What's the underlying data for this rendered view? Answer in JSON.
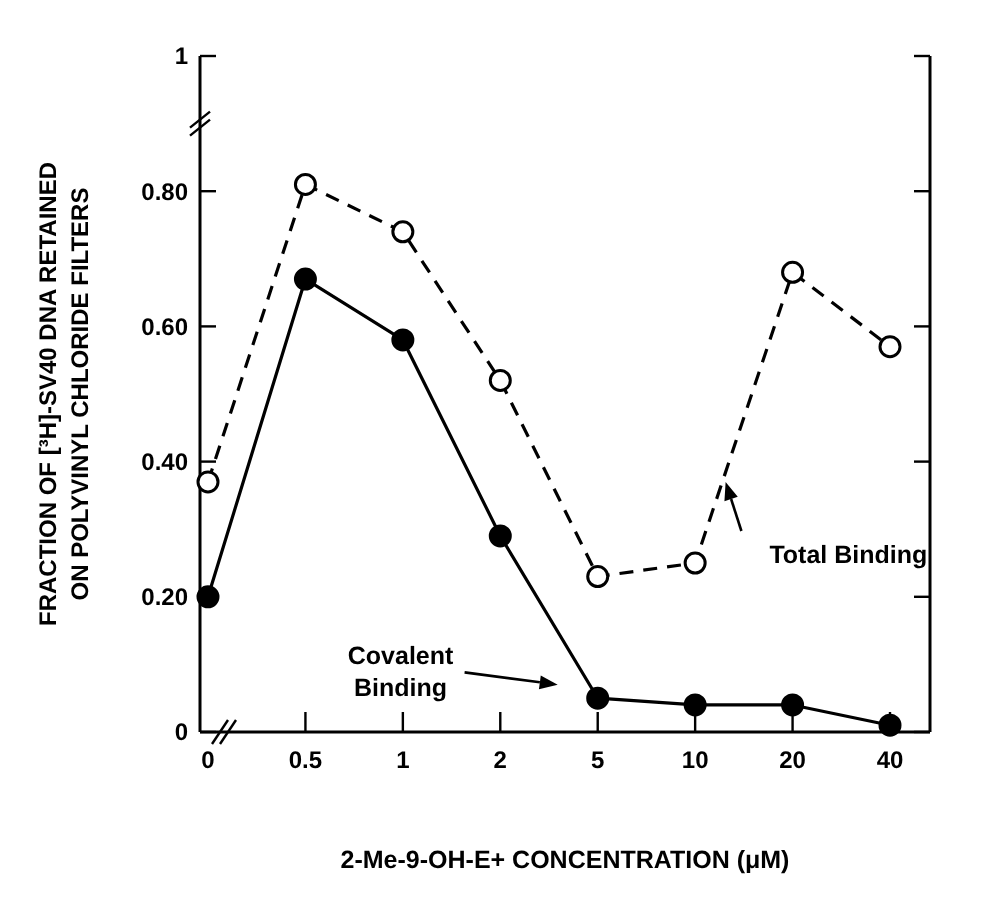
{
  "chart_data": {
    "type": "line",
    "xlabel": "2-Me-9-OH-E+ CONCENTRATION (μM)",
    "ylabel": "FRACTION OF [³H]-SV40 DNA RETAINED\nON POLYVINYL CHLORIDE FILTERS",
    "categories": [
      "0",
      "0.5",
      "1",
      "2",
      "5",
      "10",
      "20",
      "40"
    ],
    "ylim": [
      0,
      1
    ],
    "yticks": [
      0,
      {
        "value": 0.2,
        "label": "0.20"
      },
      {
        "value": 0.4,
        "label": "0.40"
      },
      {
        "value": 0.6,
        "label": "0.60"
      },
      {
        "value": 0.8,
        "label": "0.80"
      },
      1
    ],
    "series": [
      {
        "name": "Total Binding",
        "color": "#000000",
        "values": [
          0.37,
          0.81,
          0.74,
          0.52,
          0.23,
          0.25,
          0.68,
          0.57
        ],
        "line_style": "dashed",
        "marker": "circle"
      },
      {
        "name": "Covalent Binding",
        "color": "#000000",
        "values": [
          0.2,
          0.67,
          0.58,
          0.29,
          0.05,
          0.04,
          0.04,
          0.01
        ],
        "line_style": "solid",
        "marker": "circle"
      }
    ],
    "grid": false
  }
}
